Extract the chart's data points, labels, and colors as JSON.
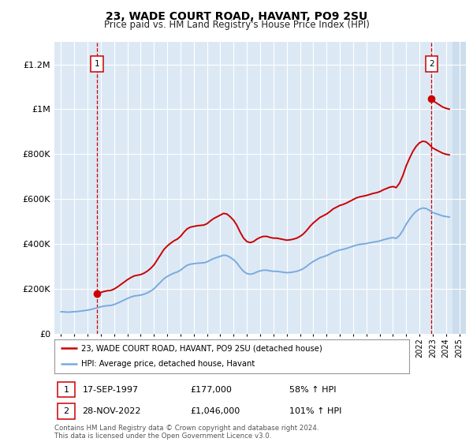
{
  "title": "23, WADE COURT ROAD, HAVANT, PO9 2SU",
  "subtitle": "Price paid vs. HM Land Registry's House Price Index (HPI)",
  "background_color": "#dce9f5",
  "plot_bg_color": "#dce9f5",
  "hpi_line_color": "#7aaadd",
  "price_line_color": "#cc0000",
  "ylim": [
    0,
    1300000
  ],
  "yticks": [
    0,
    200000,
    400000,
    600000,
    800000,
    1000000,
    1200000
  ],
  "ytick_labels": [
    "£0",
    "£200K",
    "£400K",
    "£600K",
    "£800K",
    "£1M",
    "£1.2M"
  ],
  "legend_label_red": "23, WADE COURT ROAD, HAVANT, PO9 2SU (detached house)",
  "legend_label_blue": "HPI: Average price, detached house, Havant",
  "annotation1_date": "17-SEP-1997",
  "annotation1_price": "£177,000",
  "annotation1_hpi": "58% ↑ HPI",
  "annotation2_date": "28-NOV-2022",
  "annotation2_price": "£1,046,000",
  "annotation2_hpi": "101% ↑ HPI",
  "footer": "Contains HM Land Registry data © Crown copyright and database right 2024.\nThis data is licensed under the Open Government Licence v3.0.",
  "hpi_data": {
    "years": [
      1995.0,
      1995.25,
      1995.5,
      1995.75,
      1996.0,
      1996.25,
      1996.5,
      1996.75,
      1997.0,
      1997.25,
      1997.5,
      1997.75,
      1998.0,
      1998.25,
      1998.5,
      1998.75,
      1999.0,
      1999.25,
      1999.5,
      1999.75,
      2000.0,
      2000.25,
      2000.5,
      2000.75,
      2001.0,
      2001.25,
      2001.5,
      2001.75,
      2002.0,
      2002.25,
      2002.5,
      2002.75,
      2003.0,
      2003.25,
      2003.5,
      2003.75,
      2004.0,
      2004.25,
      2004.5,
      2004.75,
      2005.0,
      2005.25,
      2005.5,
      2005.75,
      2006.0,
      2006.25,
      2006.5,
      2006.75,
      2007.0,
      2007.25,
      2007.5,
      2007.75,
      2008.0,
      2008.25,
      2008.5,
      2008.75,
      2009.0,
      2009.25,
      2009.5,
      2009.75,
      2010.0,
      2010.25,
      2010.5,
      2010.75,
      2011.0,
      2011.25,
      2011.5,
      2011.75,
      2012.0,
      2012.25,
      2012.5,
      2012.75,
      2013.0,
      2013.25,
      2013.5,
      2013.75,
      2014.0,
      2014.25,
      2014.5,
      2014.75,
      2015.0,
      2015.25,
      2015.5,
      2015.75,
      2016.0,
      2016.25,
      2016.5,
      2016.75,
      2017.0,
      2017.25,
      2017.5,
      2017.75,
      2018.0,
      2018.25,
      2018.5,
      2018.75,
      2019.0,
      2019.25,
      2019.5,
      2019.75,
      2020.0,
      2020.25,
      2020.5,
      2020.75,
      2021.0,
      2021.25,
      2021.5,
      2021.75,
      2022.0,
      2022.25,
      2022.5,
      2022.75,
      2023.0,
      2023.25,
      2023.5,
      2023.75,
      2024.0,
      2024.25
    ],
    "values": [
      98000,
      97000,
      96000,
      97000,
      98000,
      99000,
      101000,
      103000,
      105000,
      108000,
      112000,
      116000,
      120000,
      123000,
      125000,
      126000,
      130000,
      136000,
      143000,
      150000,
      157000,
      163000,
      168000,
      170000,
      172000,
      176000,
      182000,
      190000,
      200000,
      215000,
      230000,
      245000,
      255000,
      263000,
      270000,
      275000,
      283000,
      295000,
      305000,
      310000,
      312000,
      314000,
      315000,
      316000,
      320000,
      328000,
      335000,
      340000,
      345000,
      350000,
      348000,
      340000,
      330000,
      315000,
      295000,
      278000,
      268000,
      265000,
      268000,
      275000,
      280000,
      283000,
      283000,
      280000,
      278000,
      278000,
      276000,
      274000,
      272000,
      273000,
      275000,
      278000,
      283000,
      290000,
      300000,
      312000,
      322000,
      330000,
      338000,
      343000,
      348000,
      355000,
      363000,
      368000,
      373000,
      376000,
      380000,
      385000,
      390000,
      395000,
      398000,
      400000,
      402000,
      405000,
      408000,
      410000,
      413000,
      418000,
      422000,
      426000,
      428000,
      425000,
      438000,
      460000,
      488000,
      510000,
      530000,
      545000,
      555000,
      560000,
      558000,
      550000,
      540000,
      535000,
      530000,
      525000,
      522000,
      520000
    ]
  },
  "vline1_year": 1997.72,
  "vline2_year": 2022.91,
  "sale1_value": 177000,
  "sale2_value": 1046000,
  "xmin": 1994.5,
  "xmax": 2025.5
}
